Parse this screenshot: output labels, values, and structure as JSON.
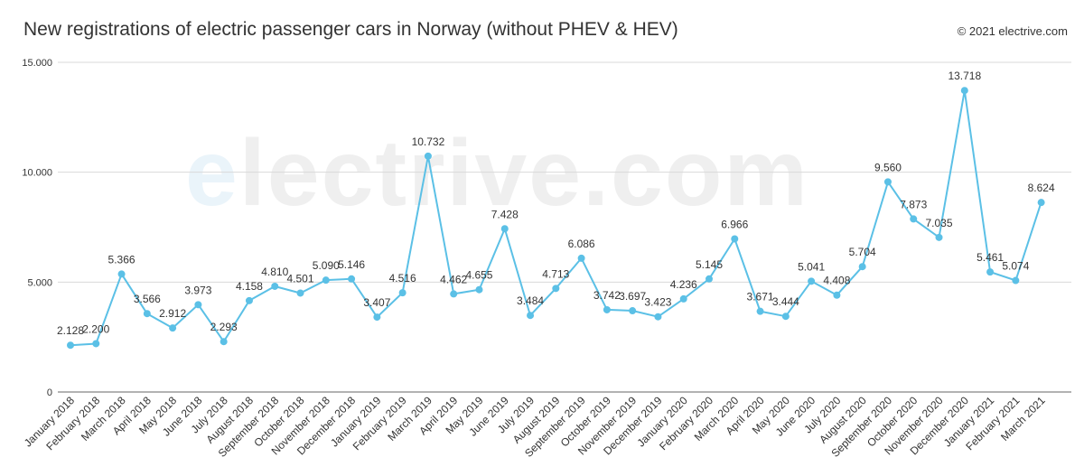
{
  "header": {
    "title": "New registrations of electric passenger cars in Norway (without PHEV & HEV)",
    "copyright": "© 2021 electrive.com",
    "watermark": "electrive.com"
  },
  "colors": {
    "line": "#5bc0e6",
    "grid": "#d9d9d9",
    "axis": "#333333"
  },
  "chart_data": {
    "type": "line",
    "title": "New registrations of electric passenger cars in Norway (without PHEV & HEV)",
    "xlabel": "",
    "ylabel": "",
    "ylim": [
      0,
      15000
    ],
    "yticks": [
      0,
      5000,
      10000,
      15000
    ],
    "ytick_labels": [
      "0",
      "5.000",
      "10.000",
      "15.000"
    ],
    "grid": true,
    "legend": "none",
    "categories": [
      "January 2018",
      "February 2018",
      "March 2018",
      "April 2018",
      "May 2018",
      "June 2018",
      "July 2018",
      "August 2018",
      "September 2018",
      "October 2018",
      "November 2018",
      "December 2018",
      "January 2019",
      "February 2019",
      "March 2019",
      "April 2019",
      "May 2019",
      "June 2019",
      "July 2019",
      "August 2019",
      "September 2019",
      "October 2019",
      "November 2019",
      "December 2019",
      "January 2020",
      "February 2020",
      "March 2020",
      "April 2020",
      "May 2020",
      "June 2020",
      "July 2020",
      "August 2020",
      "September 2020",
      "October 2020",
      "November 2020",
      "December 2020",
      "January 2021",
      "February 2021",
      "March 2021"
    ],
    "values": [
      2128,
      2200,
      5366,
      3566,
      2912,
      3973,
      2293,
      4158,
      4810,
      4501,
      5090,
      5146,
      3407,
      4516,
      10732,
      4462,
      4655,
      7428,
      3484,
      4713,
      6086,
      3742,
      3697,
      3423,
      4236,
      5145,
      6966,
      3671,
      3444,
      5041,
      4408,
      5704,
      9560,
      7873,
      7035,
      13718,
      5461,
      5074,
      8624
    ],
    "data_labels": [
      "2.128",
      "2.200",
      "5.366",
      "3.566",
      "2.912",
      "3.973",
      "2.293",
      "4.158",
      "4.810",
      "4.501",
      "5.090",
      "5.146",
      "3.407",
      "4.516",
      "10.732",
      "4.462",
      "4.655",
      "7.428",
      "3.484",
      "4.713",
      "6.086",
      "3.742",
      "3.697",
      "3.423",
      "4.236",
      "5.145",
      "6.966",
      "3.671",
      "3.444",
      "5.041",
      "4.408",
      "5.704",
      "9.560",
      "7.873",
      "7.035",
      "13.718",
      "5.461",
      "5.074",
      "8.624"
    ]
  }
}
